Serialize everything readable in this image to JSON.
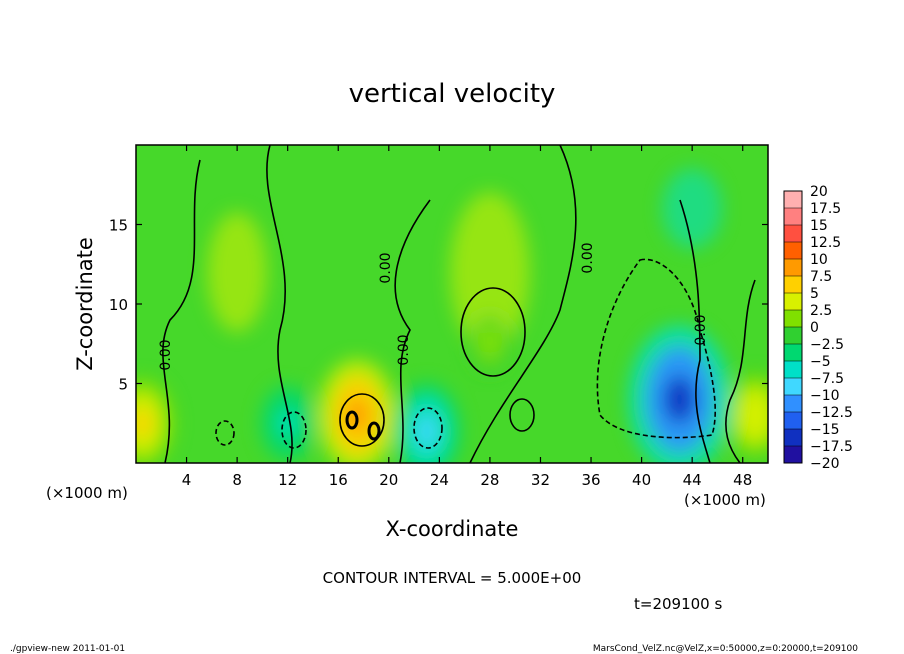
{
  "chart_data": {
    "type": "heatmap",
    "title": "vertical velocity",
    "xlabel": "X-coordinate",
    "ylabel": "Z-coordinate",
    "x_unit": "(×1000 m)",
    "y_unit": "(×1000 m)",
    "xlim": [
      0,
      50
    ],
    "ylim": [
      0,
      20
    ],
    "x_ticks": [
      4,
      8,
      12,
      16,
      20,
      24,
      28,
      32,
      36,
      40,
      44,
      48
    ],
    "y_ticks": [
      5,
      10,
      15
    ],
    "colorbar_levels": [
      "20",
      "17.5",
      "15",
      "12.5",
      "10",
      "7.5",
      "5",
      "2.5",
      "0",
      "-2.5",
      "-5",
      "-7.5",
      "-10",
      "-12.5",
      "-15",
      "-17.5",
      "-20"
    ],
    "colorbar_colors": [
      "#ffb0b0",
      "#ff8080",
      "#ff5040",
      "#ff6000",
      "#ff9a00",
      "#ffd000",
      "#d8f000",
      "#80e000",
      "#30d030",
      "#00d870",
      "#00e0c8",
      "#40d8ff",
      "#3090ff",
      "#2060f0",
      "#1030c0",
      "#2010a0",
      "#7010c0"
    ],
    "contour_labels": [
      "0.00",
      "0.00",
      "0.00",
      "0.00",
      "0.00"
    ],
    "contour_interval": "CONTOUR INTERVAL = 5.000E+00",
    "time_label": "t=209100 s",
    "features": [
      {
        "x": 28,
        "z": 7.5,
        "w": 2.5,
        "kind": "updraft"
      },
      {
        "x": 17.5,
        "z": 3,
        "w": 10,
        "kind": "updraft"
      },
      {
        "x": 0.5,
        "z": 2.5,
        "w": 7,
        "kind": "updraft"
      },
      {
        "x": 49,
        "z": 3,
        "w": 6,
        "kind": "updraft"
      },
      {
        "x": 43,
        "z": 4,
        "w": -15,
        "kind": "downdraft"
      },
      {
        "x": 23,
        "z": 2,
        "w": -8,
        "kind": "downdraft"
      },
      {
        "x": 12,
        "z": 2.5,
        "w": -5,
        "kind": "downdraft"
      }
    ]
  },
  "footer": {
    "left": "./gpview-new   2011-01-01",
    "right": "MarsCond_VelZ.nc@VelZ,x=0:50000,z=0:20000,t=209100"
  }
}
